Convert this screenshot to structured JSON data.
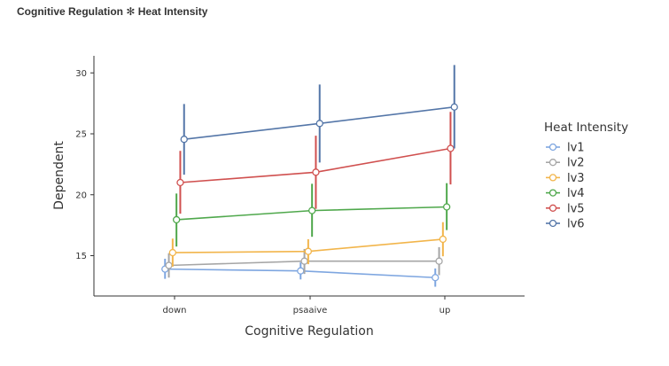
{
  "chart_data": {
    "type": "line",
    "title": "Cognitive Regulation ✻ Heat Intensity",
    "xlabel": "Cognitive Regulation",
    "ylabel": "Dependent",
    "categories": [
      "down",
      "psaaive",
      "up"
    ],
    "yticks": [
      15,
      20,
      25,
      30
    ],
    "ylim": [
      11.5,
      32
    ],
    "grid": false,
    "legend": {
      "title": "Heat Intensity",
      "placement": "right"
    },
    "error_bars": true,
    "series": [
      {
        "name": "lv1",
        "color": "#7EA6E0",
        "values": [
          13.9,
          13.75,
          13.2
        ],
        "lower": [
          13.1,
          13.05,
          12.45
        ],
        "upper": [
          14.75,
          14.45,
          13.95
        ]
      },
      {
        "name": "lv2",
        "color": "#A6A6A6",
        "values": [
          14.2,
          14.55,
          14.55
        ],
        "lower": [
          13.2,
          13.5,
          13.4
        ],
        "upper": [
          15.2,
          15.55,
          15.7
        ]
      },
      {
        "name": "lv3",
        "color": "#F2B54B",
        "values": [
          15.25,
          15.35,
          16.35
        ],
        "lower": [
          14.1,
          14.3,
          14.95
        ],
        "upper": [
          16.4,
          16.35,
          17.75
        ]
      },
      {
        "name": "lv4",
        "color": "#4FA84C",
        "values": [
          17.95,
          18.7,
          19.0
        ],
        "lower": [
          15.75,
          16.55,
          17.1
        ],
        "upper": [
          20.1,
          20.9,
          20.95
        ]
      },
      {
        "name": "lv5",
        "color": "#D0504F",
        "values": [
          21.0,
          21.85,
          23.8
        ],
        "lower": [
          18.45,
          18.85,
          20.85
        ],
        "upper": [
          23.6,
          24.85,
          26.8
        ]
      },
      {
        "name": "lv6",
        "color": "#5476A8",
        "values": [
          24.55,
          25.85,
          27.2
        ],
        "lower": [
          21.65,
          22.65,
          23.8
        ],
        "upper": [
          27.45,
          29.05,
          30.65
        ]
      }
    ]
  }
}
